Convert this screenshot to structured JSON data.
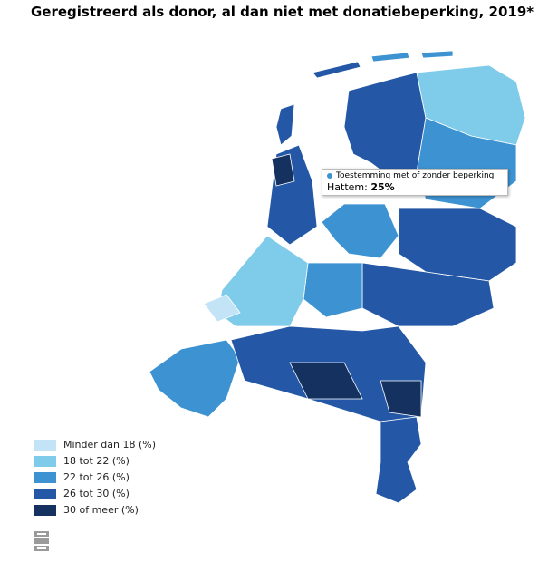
{
  "header": {
    "title": "Geregistreerd als donor, al dan niet met donatiebeperking, 2019*"
  },
  "legend": [
    {
      "label": "Minder dan 18 (%)",
      "color": "#c3e4f7"
    },
    {
      "label": "18 tot 22 (%)",
      "color": "#7fcbea"
    },
    {
      "label": "22 tot 26 (%)",
      "color": "#3d93d2"
    },
    {
      "label": "26 tot 30 (%)",
      "color": "#2458a6"
    },
    {
      "label": "30 of meer (%)",
      "color": "#15315f"
    }
  ],
  "tooltip": {
    "series": "Toestemming met of zonder beperking",
    "region": "Hattem:",
    "value": "25%"
  }
}
